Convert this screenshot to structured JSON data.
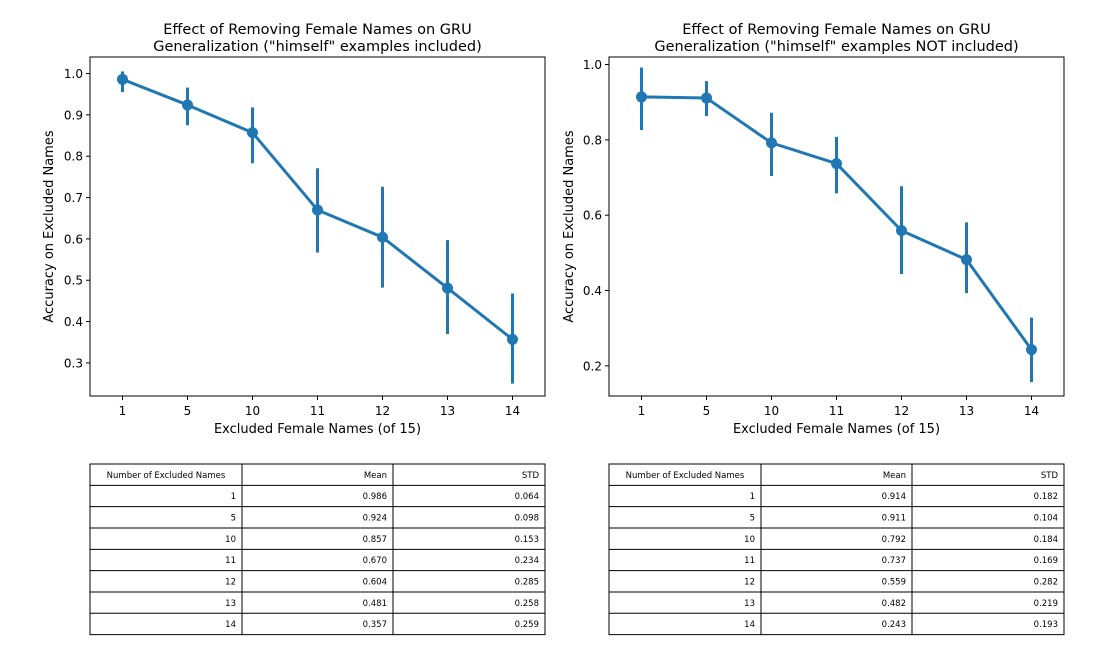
{
  "chart_data": [
    {
      "type": "line",
      "title_lines": [
        "Effect of Removing Female Names on GRU",
        "Generalization (\"himself\" examples included)"
      ],
      "xlabel": "Excluded Female Names (of 15)",
      "ylabel": "Accuracy on Excluded Names",
      "categories": [
        "1",
        "5",
        "10",
        "11",
        "12",
        "13",
        "14"
      ],
      "values": [
        0.986,
        0.924,
        0.857,
        0.67,
        0.604,
        0.481,
        0.357
      ],
      "ci_low": [
        0.955,
        0.875,
        0.783,
        0.567,
        0.482,
        0.37,
        0.25
      ],
      "ci_high": [
        1.005,
        0.966,
        0.918,
        0.771,
        0.726,
        0.597,
        0.468
      ],
      "ylim": [
        0.22,
        1.04
      ],
      "yticks": [
        0.3,
        0.4,
        0.5,
        0.6,
        0.7,
        0.8,
        0.9,
        1.0
      ],
      "ytick_labels": [
        "0.3",
        "0.4",
        "0.5",
        "0.6",
        "0.7",
        "0.8",
        "0.9",
        "1.0"
      ],
      "color": "#1f77b4",
      "table": {
        "columns": [
          "Number of Excluded Names",
          "Mean",
          "STD"
        ],
        "rows": [
          [
            "1",
            "0.986",
            "0.064"
          ],
          [
            "5",
            "0.924",
            "0.098"
          ],
          [
            "10",
            "0.857",
            "0.153"
          ],
          [
            "11",
            "0.670",
            "0.234"
          ],
          [
            "12",
            "0.604",
            "0.285"
          ],
          [
            "13",
            "0.481",
            "0.258"
          ],
          [
            "14",
            "0.357",
            "0.259"
          ]
        ]
      }
    },
    {
      "type": "line",
      "title_lines": [
        "Effect of Removing Female Names on GRU",
        "Generalization (\"himself\" examples NOT included)"
      ],
      "xlabel": "Excluded Female Names (of 15)",
      "ylabel": "Accuracy on Excluded Names",
      "categories": [
        "1",
        "5",
        "10",
        "11",
        "12",
        "13",
        "14"
      ],
      "values": [
        0.914,
        0.911,
        0.792,
        0.737,
        0.559,
        0.482,
        0.243
      ],
      "ci_low": [
        0.826,
        0.863,
        0.704,
        0.658,
        0.444,
        0.393,
        0.157
      ],
      "ci_high": [
        0.992,
        0.956,
        0.872,
        0.808,
        0.677,
        0.581,
        0.328
      ],
      "ylim": [
        0.12,
        1.02
      ],
      "yticks": [
        0.2,
        0.4,
        0.6,
        0.8,
        1.0
      ],
      "ytick_labels": [
        "0.2",
        "0.4",
        "0.6",
        "0.8",
        "1.0"
      ],
      "color": "#1f77b4",
      "table": {
        "columns": [
          "Number of Excluded Names",
          "Mean",
          "STD"
        ],
        "rows": [
          [
            "1",
            "0.914",
            "0.182"
          ],
          [
            "5",
            "0.911",
            "0.104"
          ],
          [
            "10",
            "0.792",
            "0.184"
          ],
          [
            "11",
            "0.737",
            "0.169"
          ],
          [
            "12",
            "0.559",
            "0.282"
          ],
          [
            "13",
            "0.482",
            "0.219"
          ],
          [
            "14",
            "0.243",
            "0.193"
          ]
        ]
      }
    }
  ]
}
